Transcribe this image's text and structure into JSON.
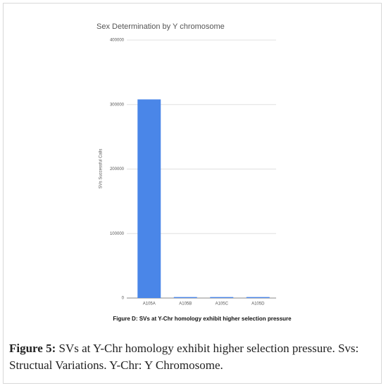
{
  "chart_data": {
    "type": "bar",
    "title": "Sex Determination by Y chromosome",
    "y_label": "SVs Successful Calls",
    "categories": [
      "A105A",
      "A105B",
      "A105C",
      "A105D"
    ],
    "values": [
      308000,
      1500,
      1500,
      1500
    ],
    "color": "#4a86e8",
    "ylim": [
      0,
      400000
    ],
    "yticks": [
      0,
      100000,
      200000,
      300000,
      400000
    ],
    "grid": true,
    "subcaption": "Figure D: SVs at Y-Chr homology exhibit higher selection pressure"
  },
  "figure_caption": {
    "label": "Figure 5:",
    "text": "SVs at Y-Chr homology exhibit higher selection pressure. Svs: Structual Variations. Y-Chr: Y Chromosome."
  }
}
